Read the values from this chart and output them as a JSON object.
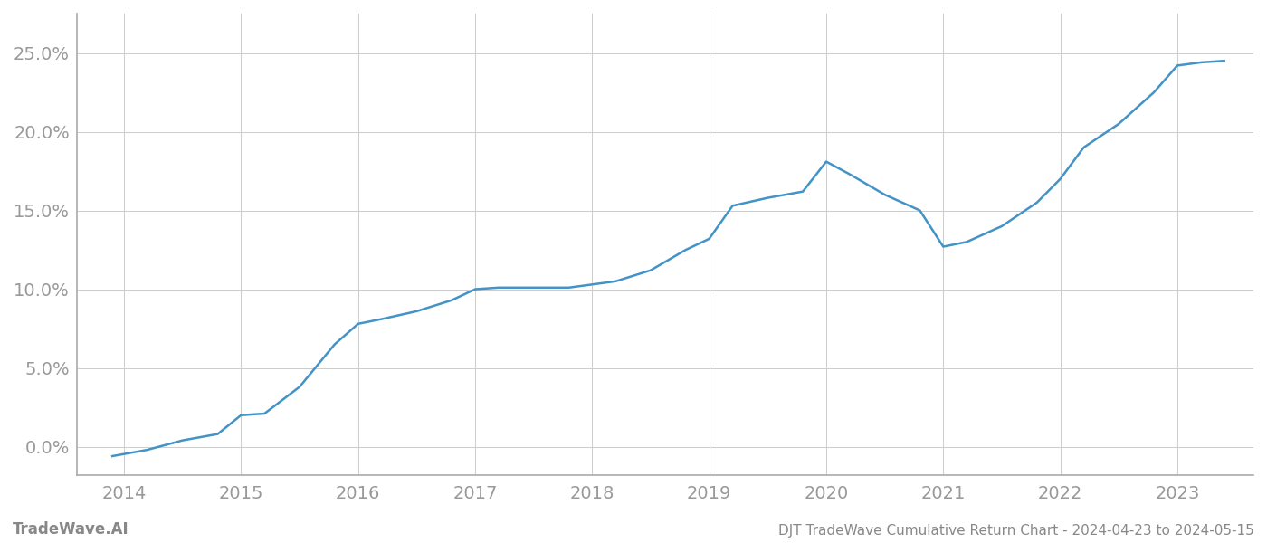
{
  "x_values": [
    2013.9,
    2014.05,
    2014.2,
    2014.5,
    2014.8,
    2015.0,
    2015.2,
    2015.5,
    2015.8,
    2016.0,
    2016.2,
    2016.5,
    2016.8,
    2017.0,
    2017.2,
    2017.5,
    2017.8,
    2018.0,
    2018.2,
    2018.5,
    2018.8,
    2019.0,
    2019.2,
    2019.5,
    2019.8,
    2020.0,
    2020.2,
    2020.5,
    2020.8,
    2021.0,
    2021.2,
    2021.5,
    2021.8,
    2022.0,
    2022.2,
    2022.5,
    2022.8,
    2023.0,
    2023.2,
    2023.4
  ],
  "y_values": [
    -0.6,
    -0.4,
    -0.2,
    0.4,
    0.8,
    2.0,
    2.1,
    3.8,
    6.5,
    7.8,
    8.1,
    8.6,
    9.3,
    10.0,
    10.1,
    10.1,
    10.1,
    10.3,
    10.5,
    11.2,
    12.5,
    13.2,
    15.3,
    15.8,
    16.2,
    18.1,
    17.3,
    16.0,
    15.0,
    12.7,
    13.0,
    14.0,
    15.5,
    17.0,
    19.0,
    20.5,
    22.5,
    24.2,
    24.4,
    24.5
  ],
  "line_color": "#4393c7",
  "line_width": 1.8,
  "background_color": "#ffffff",
  "grid_color": "#cccccc",
  "axis_color": "#aaaaaa",
  "tick_label_color": "#999999",
  "yticks": [
    0.0,
    5.0,
    10.0,
    15.0,
    20.0,
    25.0
  ],
  "xticks": [
    2014,
    2015,
    2016,
    2017,
    2018,
    2019,
    2020,
    2021,
    2022,
    2023
  ],
  "ylim": [
    -1.8,
    27.5
  ],
  "xlim": [
    2013.6,
    2023.65
  ],
  "bottom_left_text": "TradeWave.AI",
  "bottom_right_text": "DJT TradeWave Cumulative Return Chart - 2024-04-23 to 2024-05-15",
  "bottom_text_color": "#888888",
  "bottom_left_fontsize": 12,
  "bottom_right_fontsize": 11,
  "tick_fontsize": 14
}
